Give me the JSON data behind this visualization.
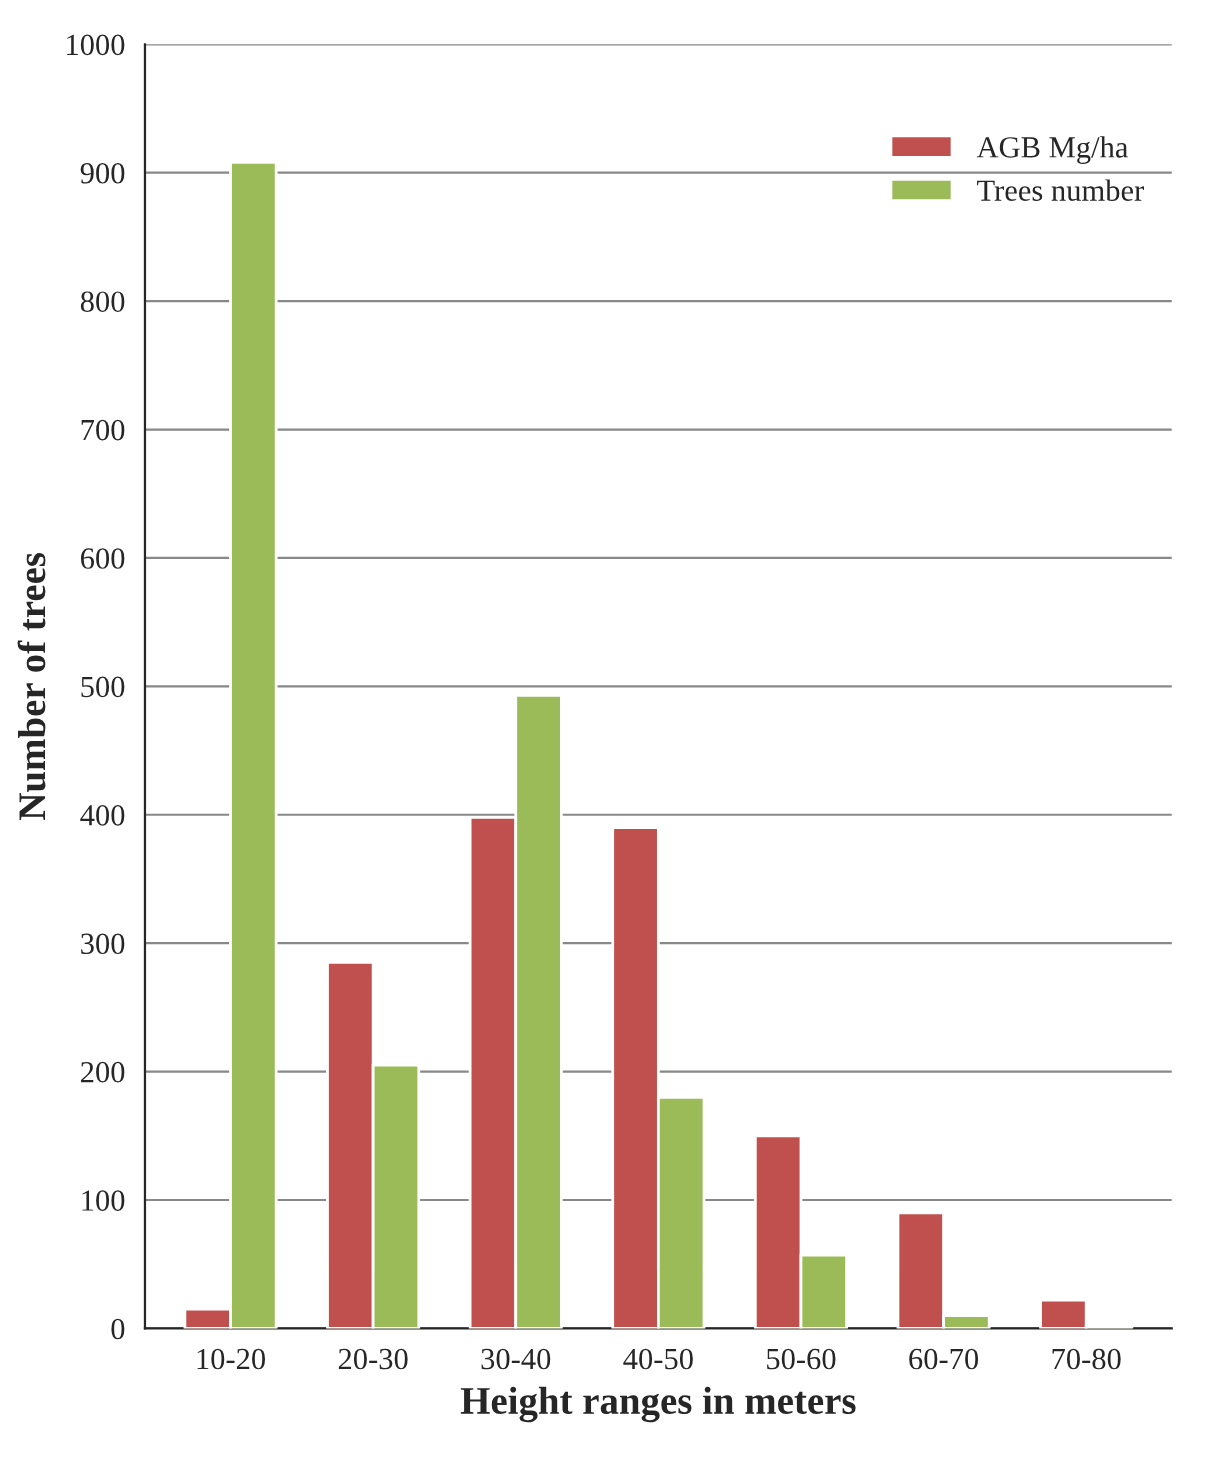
{
  "chart_data": {
    "type": "bar",
    "xlabel": "Height ranges in meters",
    "ylabel": "Number of trees",
    "categories": [
      "10-20",
      "20-30",
      "30-40",
      "40-50",
      "50-60",
      "60-70",
      "70-80"
    ],
    "series": [
      {
        "name": "AGB Mg/ha",
        "color": "#c0504d",
        "values": [
          15,
          285,
          398,
          390,
          150,
          90,
          22
        ]
      },
      {
        "name": "Trees number",
        "color": "#9bbb59",
        "values": [
          908,
          205,
          493,
          180,
          57,
          10,
          2
        ]
      }
    ],
    "ylim": [
      0,
      1000
    ],
    "yticks": [
      0,
      100,
      200,
      300,
      400,
      500,
      600,
      700,
      800,
      900,
      1000
    ],
    "grid": "y",
    "legend": "top right"
  }
}
